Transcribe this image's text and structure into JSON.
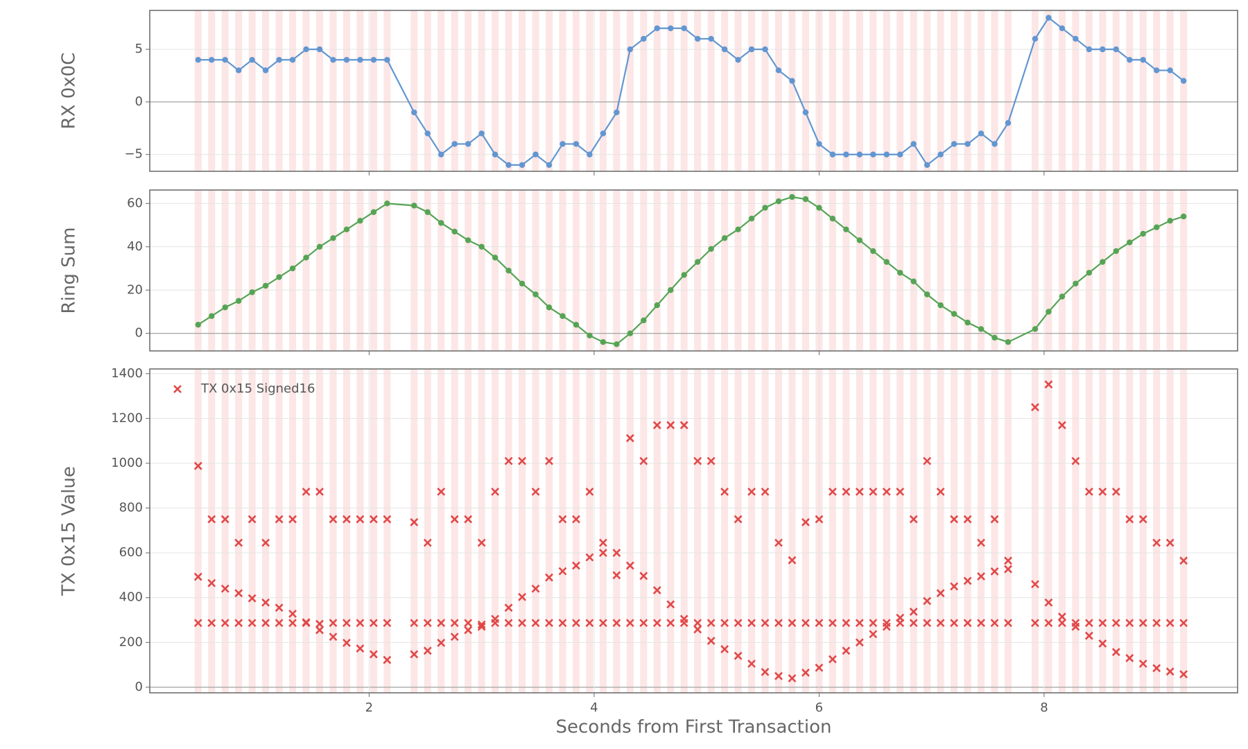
{
  "chart_data": [
    {
      "type": "line",
      "ylabel": "RX 0x0C",
      "x": [
        0.48,
        0.6,
        0.72,
        0.84,
        0.96,
        1.08,
        1.2,
        1.32,
        1.44,
        1.56,
        1.68,
        1.8,
        1.92,
        2.04,
        2.16,
        2.4,
        2.52,
        2.64,
        2.76,
        2.88,
        3.0,
        3.12,
        3.24,
        3.36,
        3.48,
        3.6,
        3.72,
        3.84,
        3.96,
        4.08,
        4.2,
        4.32,
        4.44,
        4.56,
        4.68,
        4.8,
        4.92,
        5.04,
        5.16,
        5.28,
        5.4,
        5.52,
        5.64,
        5.76,
        5.88,
        6.0,
        6.12,
        6.24,
        6.36,
        6.48,
        6.6,
        6.72,
        6.84,
        6.96,
        7.08,
        7.2,
        7.32,
        7.44,
        7.56,
        7.68,
        7.92,
        8.04,
        8.16,
        8.28,
        8.4,
        8.52,
        8.64,
        8.76,
        8.88,
        9.0,
        9.12,
        9.24
      ],
      "series": [
        {
          "color": "#6196d0",
          "values": [
            4,
            4,
            4,
            3,
            4,
            3,
            4,
            4,
            5,
            5,
            4,
            4,
            4,
            4,
            4,
            -1,
            -3,
            -5,
            -4,
            -4,
            -3,
            -5,
            -6,
            -6,
            -5,
            -6,
            -4,
            -4,
            -5,
            -3,
            -1,
            5,
            6,
            7,
            7,
            7,
            6,
            6,
            5,
            4,
            5,
            5,
            3,
            2,
            -1,
            -4,
            -5,
            -5,
            -5,
            -5,
            -5,
            -5,
            -4,
            -6,
            -5,
            -4,
            -4,
            -3,
            -4,
            -2,
            6,
            8,
            7,
            6,
            5,
            5,
            5,
            4,
            4,
            3,
            3,
            2
          ]
        }
      ],
      "xlim": [
        0.05,
        9.72
      ],
      "xticks": [
        2,
        4,
        6,
        8
      ],
      "ylim": [
        -6.6,
        8.7
      ],
      "yticks": [
        {
          "value": -5,
          "label": "−5"
        },
        0,
        5
      ],
      "grid": true
    },
    {
      "type": "line",
      "ylabel": "Ring Sum",
      "x": [
        0.48,
        0.6,
        0.72,
        0.84,
        0.96,
        1.08,
        1.2,
        1.32,
        1.44,
        1.56,
        1.68,
        1.8,
        1.92,
        2.04,
        2.16,
        2.4,
        2.52,
        2.64,
        2.76,
        2.88,
        3.0,
        3.12,
        3.24,
        3.36,
        3.48,
        3.6,
        3.72,
        3.84,
        3.96,
        4.08,
        4.2,
        4.32,
        4.44,
        4.56,
        4.68,
        4.8,
        4.92,
        5.04,
        5.16,
        5.28,
        5.4,
        5.52,
        5.64,
        5.76,
        5.88,
        6.0,
        6.12,
        6.24,
        6.36,
        6.48,
        6.6,
        6.72,
        6.84,
        6.96,
        7.08,
        7.2,
        7.32,
        7.44,
        7.56,
        7.68,
        7.92,
        8.04,
        8.16,
        8.28,
        8.4,
        8.52,
        8.64,
        8.76,
        8.88,
        9.0,
        9.12,
        9.24
      ],
      "series": [
        {
          "color": "#55a455",
          "values": [
            4,
            8,
            12,
            15,
            19,
            22,
            26,
            30,
            35,
            40,
            44,
            48,
            52,
            56,
            60,
            59,
            56,
            51,
            47,
            43,
            40,
            35,
            29,
            23,
            18,
            12,
            8,
            4,
            -1,
            -4,
            -5,
            0,
            6,
            13,
            20,
            27,
            33,
            39,
            44,
            48,
            53,
            58,
            61,
            63,
            62,
            58,
            53,
            48,
            43,
            38,
            33,
            28,
            24,
            18,
            13,
            9,
            5,
            2,
            -2,
            -4,
            2,
            10,
            17,
            23,
            28,
            33,
            38,
            42,
            46,
            49,
            52,
            54
          ]
        }
      ],
      "xlim": [
        0.05,
        9.72
      ],
      "xticks": [
        2,
        4,
        6,
        8
      ],
      "ylim": [
        -8.1,
        66.2
      ],
      "yticks": [
        0,
        20,
        40,
        60
      ],
      "grid": true
    },
    {
      "type": "scatter",
      "ylabel": "TX 0x15 Value",
      "xlabel": "Seconds from First Transaction",
      "legend": "upper left",
      "x": [
        0.48,
        0.6,
        0.72,
        0.84,
        0.96,
        1.08,
        1.2,
        1.32,
        1.44,
        1.56,
        1.68,
        1.8,
        1.92,
        2.04,
        2.16,
        2.4,
        2.52,
        2.64,
        2.76,
        2.88,
        3.0,
        3.12,
        3.24,
        3.36,
        3.48,
        3.6,
        3.72,
        3.84,
        3.96,
        4.08,
        4.2,
        4.32,
        4.44,
        4.56,
        4.68,
        4.8,
        4.92,
        5.04,
        5.16,
        5.28,
        5.4,
        5.52,
        5.64,
        5.76,
        5.88,
        6.0,
        6.12,
        6.24,
        6.36,
        6.48,
        6.6,
        6.72,
        6.84,
        6.96,
        7.08,
        7.2,
        7.32,
        7.44,
        7.56,
        7.68,
        7.92,
        8.04,
        8.16,
        8.28,
        8.4,
        8.52,
        8.64,
        8.76,
        8.88,
        9.0,
        9.12,
        9.24
      ],
      "series": [
        {
          "name": "TX 0x15 Signed16",
          "color": "#e04848",
          "values": [
            [
              988,
              493,
              287
            ],
            [
              750,
              465,
              287
            ],
            [
              750,
              440,
              287
            ],
            [
              645,
              420,
              287
            ],
            [
              750,
              397,
              287
            ],
            [
              645,
              378,
              287
            ],
            [
              750,
              355,
              287
            ],
            [
              750,
              328,
              287
            ],
            [
              873,
              290,
              287
            ],
            [
              873,
              283,
              255
            ],
            [
              750,
              287,
              225
            ],
            [
              750,
              287,
              198
            ],
            [
              750,
              287,
              173
            ],
            [
              750,
              287,
              147
            ],
            [
              750,
              287,
              122
            ],
            [
              737,
              287,
              147
            ],
            [
              645,
              287,
              163
            ],
            [
              873,
              287,
              198
            ],
            [
              750,
              287,
              225
            ],
            [
              750,
              287,
              255
            ],
            [
              645,
              280,
              270
            ],
            [
              873,
              305,
              287
            ],
            [
              1010,
              355,
              287
            ],
            [
              1010,
              403,
              287
            ],
            [
              873,
              440,
              287
            ],
            [
              1010,
              490,
              287
            ],
            [
              750,
              518,
              287
            ],
            [
              750,
              543,
              287
            ],
            [
              873,
              580,
              287
            ],
            [
              645,
              600,
              287
            ],
            [
              600,
              500,
              287
            ],
            [
              1112,
              543,
              287
            ],
            [
              1010,
              497,
              287
            ],
            [
              1170,
              433,
              287
            ],
            [
              1170,
              370,
              287
            ],
            [
              1170,
              305,
              287
            ],
            [
              1010,
              287,
              258
            ],
            [
              1010,
              287,
              207
            ],
            [
              873,
              287,
              170
            ],
            [
              750,
              287,
              140
            ],
            [
              873,
              287,
              105
            ],
            [
              873,
              287,
              68
            ],
            [
              645,
              287,
              50
            ],
            [
              567,
              287,
              40
            ],
            [
              737,
              287,
              65
            ],
            [
              750,
              287,
              87
            ],
            [
              873,
              287,
              125
            ],
            [
              873,
              287,
              163
            ],
            [
              873,
              287,
              200
            ],
            [
              873,
              287,
              237
            ],
            [
              873,
              287,
              270
            ],
            [
              873,
              310,
              287
            ],
            [
              750,
              337,
              287
            ],
            [
              1010,
              385,
              287
            ],
            [
              873,
              420,
              287
            ],
            [
              750,
              450,
              287
            ],
            [
              750,
              475,
              287
            ],
            [
              645,
              495,
              287
            ],
            [
              750,
              517,
              287
            ],
            [
              565,
              527,
              287
            ],
            [
              1250,
              460,
              287
            ],
            [
              1352,
              378,
              287
            ],
            [
              1170,
              315,
              287
            ],
            [
              1010,
              270,
              287
            ],
            [
              873,
              230,
              287
            ],
            [
              873,
              195,
              287
            ],
            [
              873,
              157,
              287
            ],
            [
              750,
              130,
              287
            ],
            [
              750,
              105,
              287
            ],
            [
              645,
              85,
              287
            ],
            [
              645,
              70,
              287
            ],
            [
              565,
              58,
              287
            ]
          ]
        }
      ],
      "xlim": [
        0.05,
        9.72
      ],
      "xticks": [
        2,
        4,
        6,
        8
      ],
      "ylim": [
        -25,
        1421
      ],
      "yticks": [
        0,
        200,
        400,
        600,
        800,
        1000,
        1200,
        1400
      ],
      "grid": true
    }
  ]
}
